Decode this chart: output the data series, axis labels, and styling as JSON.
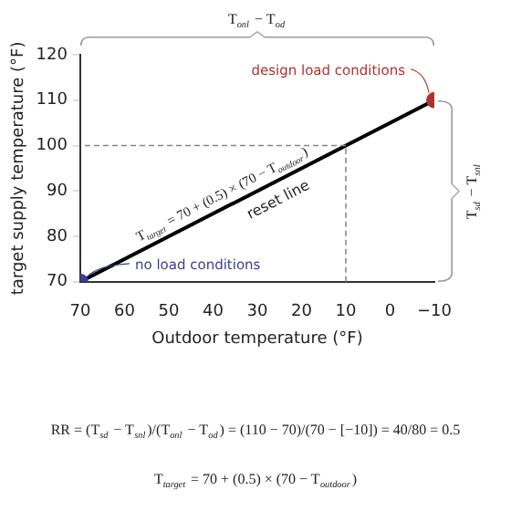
{
  "chart_data": {
    "type": "line",
    "xlabel": "Outdoor temperature (°F)",
    "ylabel": "target supply temperature (°F)",
    "xlim": [
      70,
      -10
    ],
    "xticks": [
      70,
      60,
      50,
      40,
      30,
      20,
      10,
      0,
      -10
    ],
    "ylim": [
      70,
      120
    ],
    "yticks": [
      70,
      80,
      90,
      100,
      110,
      120
    ],
    "grid": false,
    "legend": false,
    "marker": "circle",
    "line_style": "solid",
    "series": [
      {
        "x": [
          70,
          -10
        ],
        "values": [
          70,
          110
        ],
        "color": "#000000",
        "colors": [
          "#3b3f8f",
          "#b0302f"
        ]
      }
    ],
    "ref_lines": [
      {
        "axis": "x",
        "value": 10,
        "color": "#888888",
        "line_style": "dashed"
      },
      {
        "axis": "y",
        "value": 100,
        "color": "#888888",
        "line_style": "dashed"
      }
    ],
    "annotations": [
      {
        "text": "design load conditions",
        "x": -10,
        "y": 110
      },
      {
        "text": "no load conditions",
        "x": 70,
        "y": 70
      },
      "reset line",
      "T$_{target}$ = 70 + (0.5) × (70 − T$_{outdoor}$)",
      "T$_{onl}$ − T$_{od}$",
      "T$_{sd}$ − T$_{snl}$",
      "RR = (T$_{sd}$ − T$_{snl}$)/(T$_{onl}$ − T$_{od}$) = (110 − 70)/(70 − [−10]) = 40/80 = 0.5",
      "T$_{target}$ = 70 + (0.5) × (70 − T$_{outdoor}$)"
    ]
  }
}
